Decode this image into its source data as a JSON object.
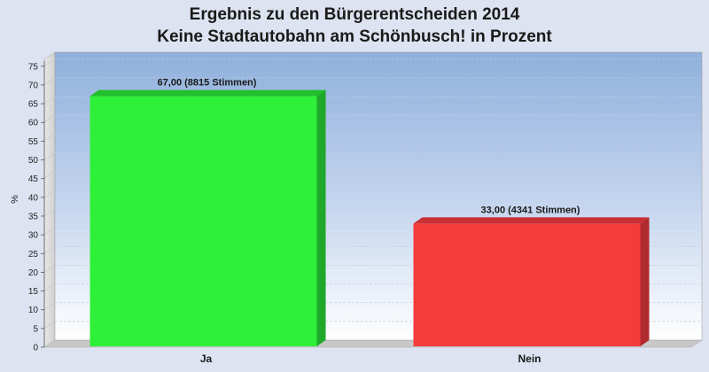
{
  "chart_data": {
    "type": "bar",
    "title_lines": [
      "Ergebnis zu den Bürgerentscheiden 2014",
      "Keine Stadtautobahn am Schönbusch! in Prozent"
    ],
    "xlabel": "",
    "ylabel": "%",
    "ylim": [
      0,
      77
    ],
    "yticks": [
      0,
      5,
      10,
      15,
      20,
      25,
      30,
      35,
      40,
      45,
      50,
      55,
      60,
      65,
      70,
      75
    ],
    "grid": true,
    "categories": [
      "Ja",
      "Nein"
    ],
    "values": [
      67.0,
      33.0
    ],
    "data_labels": [
      "67,00 (8815 Stimmen)",
      "33,00 (4341 Stimmen)"
    ],
    "colors": [
      "#2ef038",
      "#f43c3c"
    ],
    "side_colors": [
      "#1fa82a",
      "#b02a2e"
    ],
    "top_colors": [
      "#22c02c",
      "#c83036"
    ]
  }
}
